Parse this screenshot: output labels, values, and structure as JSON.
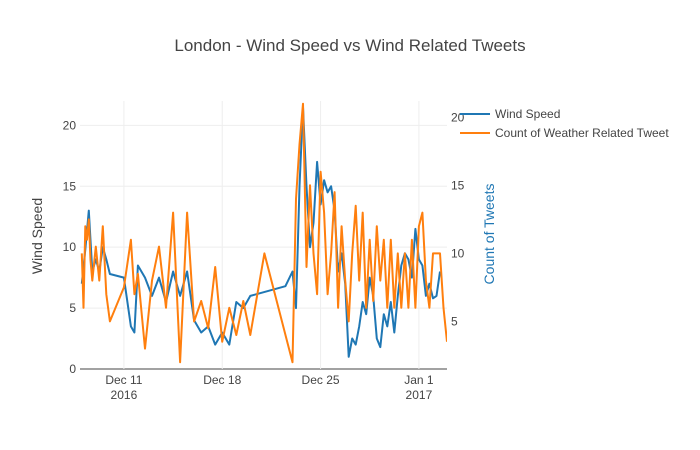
{
  "chart_data": {
    "type": "line",
    "title": "London - Wind Speed vs Wind Related Tweets",
    "ylabel": "Wind Speed",
    "y2label": "Count of Tweets",
    "x_ticks": [
      {
        "date": "2016-12-11",
        "line1": "Dec 11",
        "line2": "2016"
      },
      {
        "date": "2016-12-18",
        "line1": "Dec 18",
        "line2": ""
      },
      {
        "date": "2016-12-25",
        "line1": "Dec 25",
        "line2": ""
      },
      {
        "date": "2017-01-01",
        "line1": "Jan 1",
        "line2": "2017"
      }
    ],
    "xlim": [
      "2016-12-07T21:00",
      "2017-01-03T00:00"
    ],
    "ylim": [
      0,
      22
    ],
    "y_ticks": [
      0,
      5,
      10,
      15,
      20
    ],
    "y2lim": [
      1.5,
      21.2
    ],
    "y2_ticks": [
      5,
      10,
      15,
      20
    ],
    "legend_position": "top-right",
    "series": [
      {
        "name": "Wind Speed",
        "color": "#1f77b4",
        "axis": "y",
        "points": [
          [
            "2016-12-08T00:00",
            7.0
          ],
          [
            "2016-12-08T06:00",
            9.8
          ],
          [
            "2016-12-08T12:00",
            13.0
          ],
          [
            "2016-12-08T18:00",
            8.0
          ],
          [
            "2016-12-09T00:00",
            9.0
          ],
          [
            "2016-12-09T06:00",
            8.0
          ],
          [
            "2016-12-09T12:00",
            10.0
          ],
          [
            "2016-12-09T18:00",
            9.0
          ],
          [
            "2016-12-10T00:00",
            7.8
          ],
          [
            "2016-12-11T00:00",
            7.5
          ],
          [
            "2016-12-11T12:00",
            3.5
          ],
          [
            "2016-12-11T18:00",
            3.0
          ],
          [
            "2016-12-12T00:00",
            8.5
          ],
          [
            "2016-12-12T12:00",
            7.5
          ],
          [
            "2016-12-13T00:00",
            6.0
          ],
          [
            "2016-12-13T12:00",
            7.5
          ],
          [
            "2016-12-14T00:00",
            5.5
          ],
          [
            "2016-12-14T12:00",
            8.0
          ],
          [
            "2016-12-15T00:00",
            6.0
          ],
          [
            "2016-12-15T12:00",
            8.0
          ],
          [
            "2016-12-16T00:00",
            4.0
          ],
          [
            "2016-12-16T12:00",
            3.0
          ],
          [
            "2016-12-17T00:00",
            3.5
          ],
          [
            "2016-12-17T12:00",
            2.0
          ],
          [
            "2016-12-18T00:00",
            3.0
          ],
          [
            "2016-12-18T12:00",
            2.0
          ],
          [
            "2016-12-19T00:00",
            5.5
          ],
          [
            "2016-12-19T12:00",
            5.0
          ],
          [
            "2016-12-20T00:00",
            6.0
          ],
          [
            "2016-12-22T12:00",
            6.8
          ],
          [
            "2016-12-23T00:00",
            8.0
          ],
          [
            "2016-12-23T06:00",
            5.0
          ],
          [
            "2016-12-23T12:00",
            15.0
          ],
          [
            "2016-12-23T18:00",
            21.5
          ],
          [
            "2016-12-24T00:00",
            15.0
          ],
          [
            "2016-12-24T06:00",
            10.0
          ],
          [
            "2016-12-24T12:00",
            12.0
          ],
          [
            "2016-12-24T18:00",
            17.0
          ],
          [
            "2016-12-25T00:00",
            13.5
          ],
          [
            "2016-12-25T06:00",
            15.5
          ],
          [
            "2016-12-25T12:00",
            14.5
          ],
          [
            "2016-12-25T18:00",
            15.0
          ],
          [
            "2016-12-26T00:00",
            13.0
          ],
          [
            "2016-12-26T06:00",
            8.0
          ],
          [
            "2016-12-26T12:00",
            9.5
          ],
          [
            "2016-12-26T18:00",
            7.0
          ],
          [
            "2016-12-27T00:00",
            1.0
          ],
          [
            "2016-12-27T06:00",
            2.5
          ],
          [
            "2016-12-27T12:00",
            2.0
          ],
          [
            "2016-12-27T18:00",
            3.5
          ],
          [
            "2016-12-28T00:00",
            5.5
          ],
          [
            "2016-12-28T06:00",
            4.5
          ],
          [
            "2016-12-28T12:00",
            7.5
          ],
          [
            "2016-12-28T18:00",
            6.0
          ],
          [
            "2016-12-29T00:00",
            2.5
          ],
          [
            "2016-12-29T06:00",
            1.8
          ],
          [
            "2016-12-29T12:00",
            4.5
          ],
          [
            "2016-12-29T18:00",
            3.5
          ],
          [
            "2016-12-30T00:00",
            5.5
          ],
          [
            "2016-12-30T06:00",
            3.0
          ],
          [
            "2016-12-30T12:00",
            6.0
          ],
          [
            "2016-12-30T18:00",
            8.5
          ],
          [
            "2016-12-31T00:00",
            9.5
          ],
          [
            "2016-12-31T06:00",
            9.0
          ],
          [
            "2016-12-31T12:00",
            7.5
          ],
          [
            "2016-12-31T18:00",
            11.5
          ],
          [
            "2017-01-01T00:00",
            9.0
          ],
          [
            "2017-01-01T06:00",
            8.5
          ],
          [
            "2017-01-01T12:00",
            6.0
          ],
          [
            "2017-01-01T18:00",
            7.0
          ],
          [
            "2017-01-02T00:00",
            5.8
          ],
          [
            "2017-01-02T06:00",
            6.0
          ],
          [
            "2017-01-02T12:00",
            8.0
          ]
        ]
      },
      {
        "name": "Count of Weather Related Tweet",
        "color": "#ff7f0e",
        "axis": "y2",
        "points": [
          [
            "2016-12-08T00:00",
            10.0
          ],
          [
            "2016-12-08T03:00",
            6.0
          ],
          [
            "2016-12-08T06:00",
            12.0
          ],
          [
            "2016-12-08T09:00",
            11.0
          ],
          [
            "2016-12-08T12:00",
            12.5
          ],
          [
            "2016-12-08T15:00",
            9.5
          ],
          [
            "2016-12-08T18:00",
            8.0
          ],
          [
            "2016-12-09T00:00",
            10.5
          ],
          [
            "2016-12-09T06:00",
            8.0
          ],
          [
            "2016-12-09T12:00",
            12.0
          ],
          [
            "2016-12-09T18:00",
            7.0
          ],
          [
            "2016-12-10T00:00",
            5.0
          ],
          [
            "2016-12-11T00:00",
            7.5
          ],
          [
            "2016-12-11T12:00",
            11.0
          ],
          [
            "2016-12-11T18:00",
            7.0
          ],
          [
            "2016-12-12T00:00",
            8.5
          ],
          [
            "2016-12-12T12:00",
            3.0
          ],
          [
            "2016-12-13T00:00",
            8.0
          ],
          [
            "2016-12-13T12:00",
            10.5
          ],
          [
            "2016-12-14T00:00",
            6.0
          ],
          [
            "2016-12-14T12:00",
            13.0
          ],
          [
            "2016-12-15T00:00",
            2.0
          ],
          [
            "2016-12-15T12:00",
            13.0
          ],
          [
            "2016-12-16T00:00",
            5.0
          ],
          [
            "2016-12-16T12:00",
            6.5
          ],
          [
            "2016-12-17T00:00",
            4.5
          ],
          [
            "2016-12-17T12:00",
            9.0
          ],
          [
            "2016-12-18T00:00",
            3.5
          ],
          [
            "2016-12-18T12:00",
            6.0
          ],
          [
            "2016-12-19T00:00",
            4.0
          ],
          [
            "2016-12-19T12:00",
            6.5
          ],
          [
            "2016-12-20T00:00",
            4.0
          ],
          [
            "2016-12-21T00:00",
            10.0
          ],
          [
            "2016-12-23T00:00",
            2.0
          ],
          [
            "2016-12-23T06:00",
            14.0
          ],
          [
            "2016-12-23T12:00",
            18.0
          ],
          [
            "2016-12-23T18:00",
            21.0
          ],
          [
            "2016-12-24T00:00",
            9.0
          ],
          [
            "2016-12-24T06:00",
            15.0
          ],
          [
            "2016-12-24T12:00",
            10.0
          ],
          [
            "2016-12-24T18:00",
            7.0
          ],
          [
            "2016-12-25T00:00",
            16.0
          ],
          [
            "2016-12-25T06:00",
            13.0
          ],
          [
            "2016-12-25T12:00",
            7.0
          ],
          [
            "2016-12-25T18:00",
            10.0
          ],
          [
            "2016-12-26T00:00",
            14.5
          ],
          [
            "2016-12-26T06:00",
            6.0
          ],
          [
            "2016-12-26T12:00",
            12.0
          ],
          [
            "2016-12-26T18:00",
            8.0
          ],
          [
            "2016-12-27T00:00",
            5.0
          ],
          [
            "2016-12-27T06:00",
            10.0
          ],
          [
            "2016-12-27T12:00",
            13.5
          ],
          [
            "2016-12-27T18:00",
            8.0
          ],
          [
            "2016-12-28T00:00",
            13.0
          ],
          [
            "2016-12-28T06:00",
            6.0
          ],
          [
            "2016-12-28T12:00",
            11.0
          ],
          [
            "2016-12-28T18:00",
            6.5
          ],
          [
            "2016-12-29T00:00",
            12.0
          ],
          [
            "2016-12-29T06:00",
            8.0
          ],
          [
            "2016-12-29T12:00",
            11.0
          ],
          [
            "2016-12-29T18:00",
            6.0
          ],
          [
            "2016-12-30T00:00",
            11.0
          ],
          [
            "2016-12-30T06:00",
            6.0
          ],
          [
            "2016-12-30T12:00",
            10.0
          ],
          [
            "2016-12-30T18:00",
            6.0
          ],
          [
            "2016-12-31T00:00",
            10.0
          ],
          [
            "2016-12-31T06:00",
            6.0
          ],
          [
            "2016-12-31T12:00",
            11.0
          ],
          [
            "2016-12-31T18:00",
            6.0
          ],
          [
            "2017-01-01T00:00",
            12.0
          ],
          [
            "2017-01-01T06:00",
            13.0
          ],
          [
            "2017-01-01T12:00",
            8.0
          ],
          [
            "2017-01-01T18:00",
            6.0
          ],
          [
            "2017-01-02T00:00",
            10.0
          ],
          [
            "2017-01-02T06:00",
            10.0
          ],
          [
            "2017-01-02T12:00",
            10.0
          ],
          [
            "2017-01-02T18:00",
            6.0
          ],
          [
            "2017-01-03T00:00",
            3.5
          ]
        ]
      }
    ]
  }
}
